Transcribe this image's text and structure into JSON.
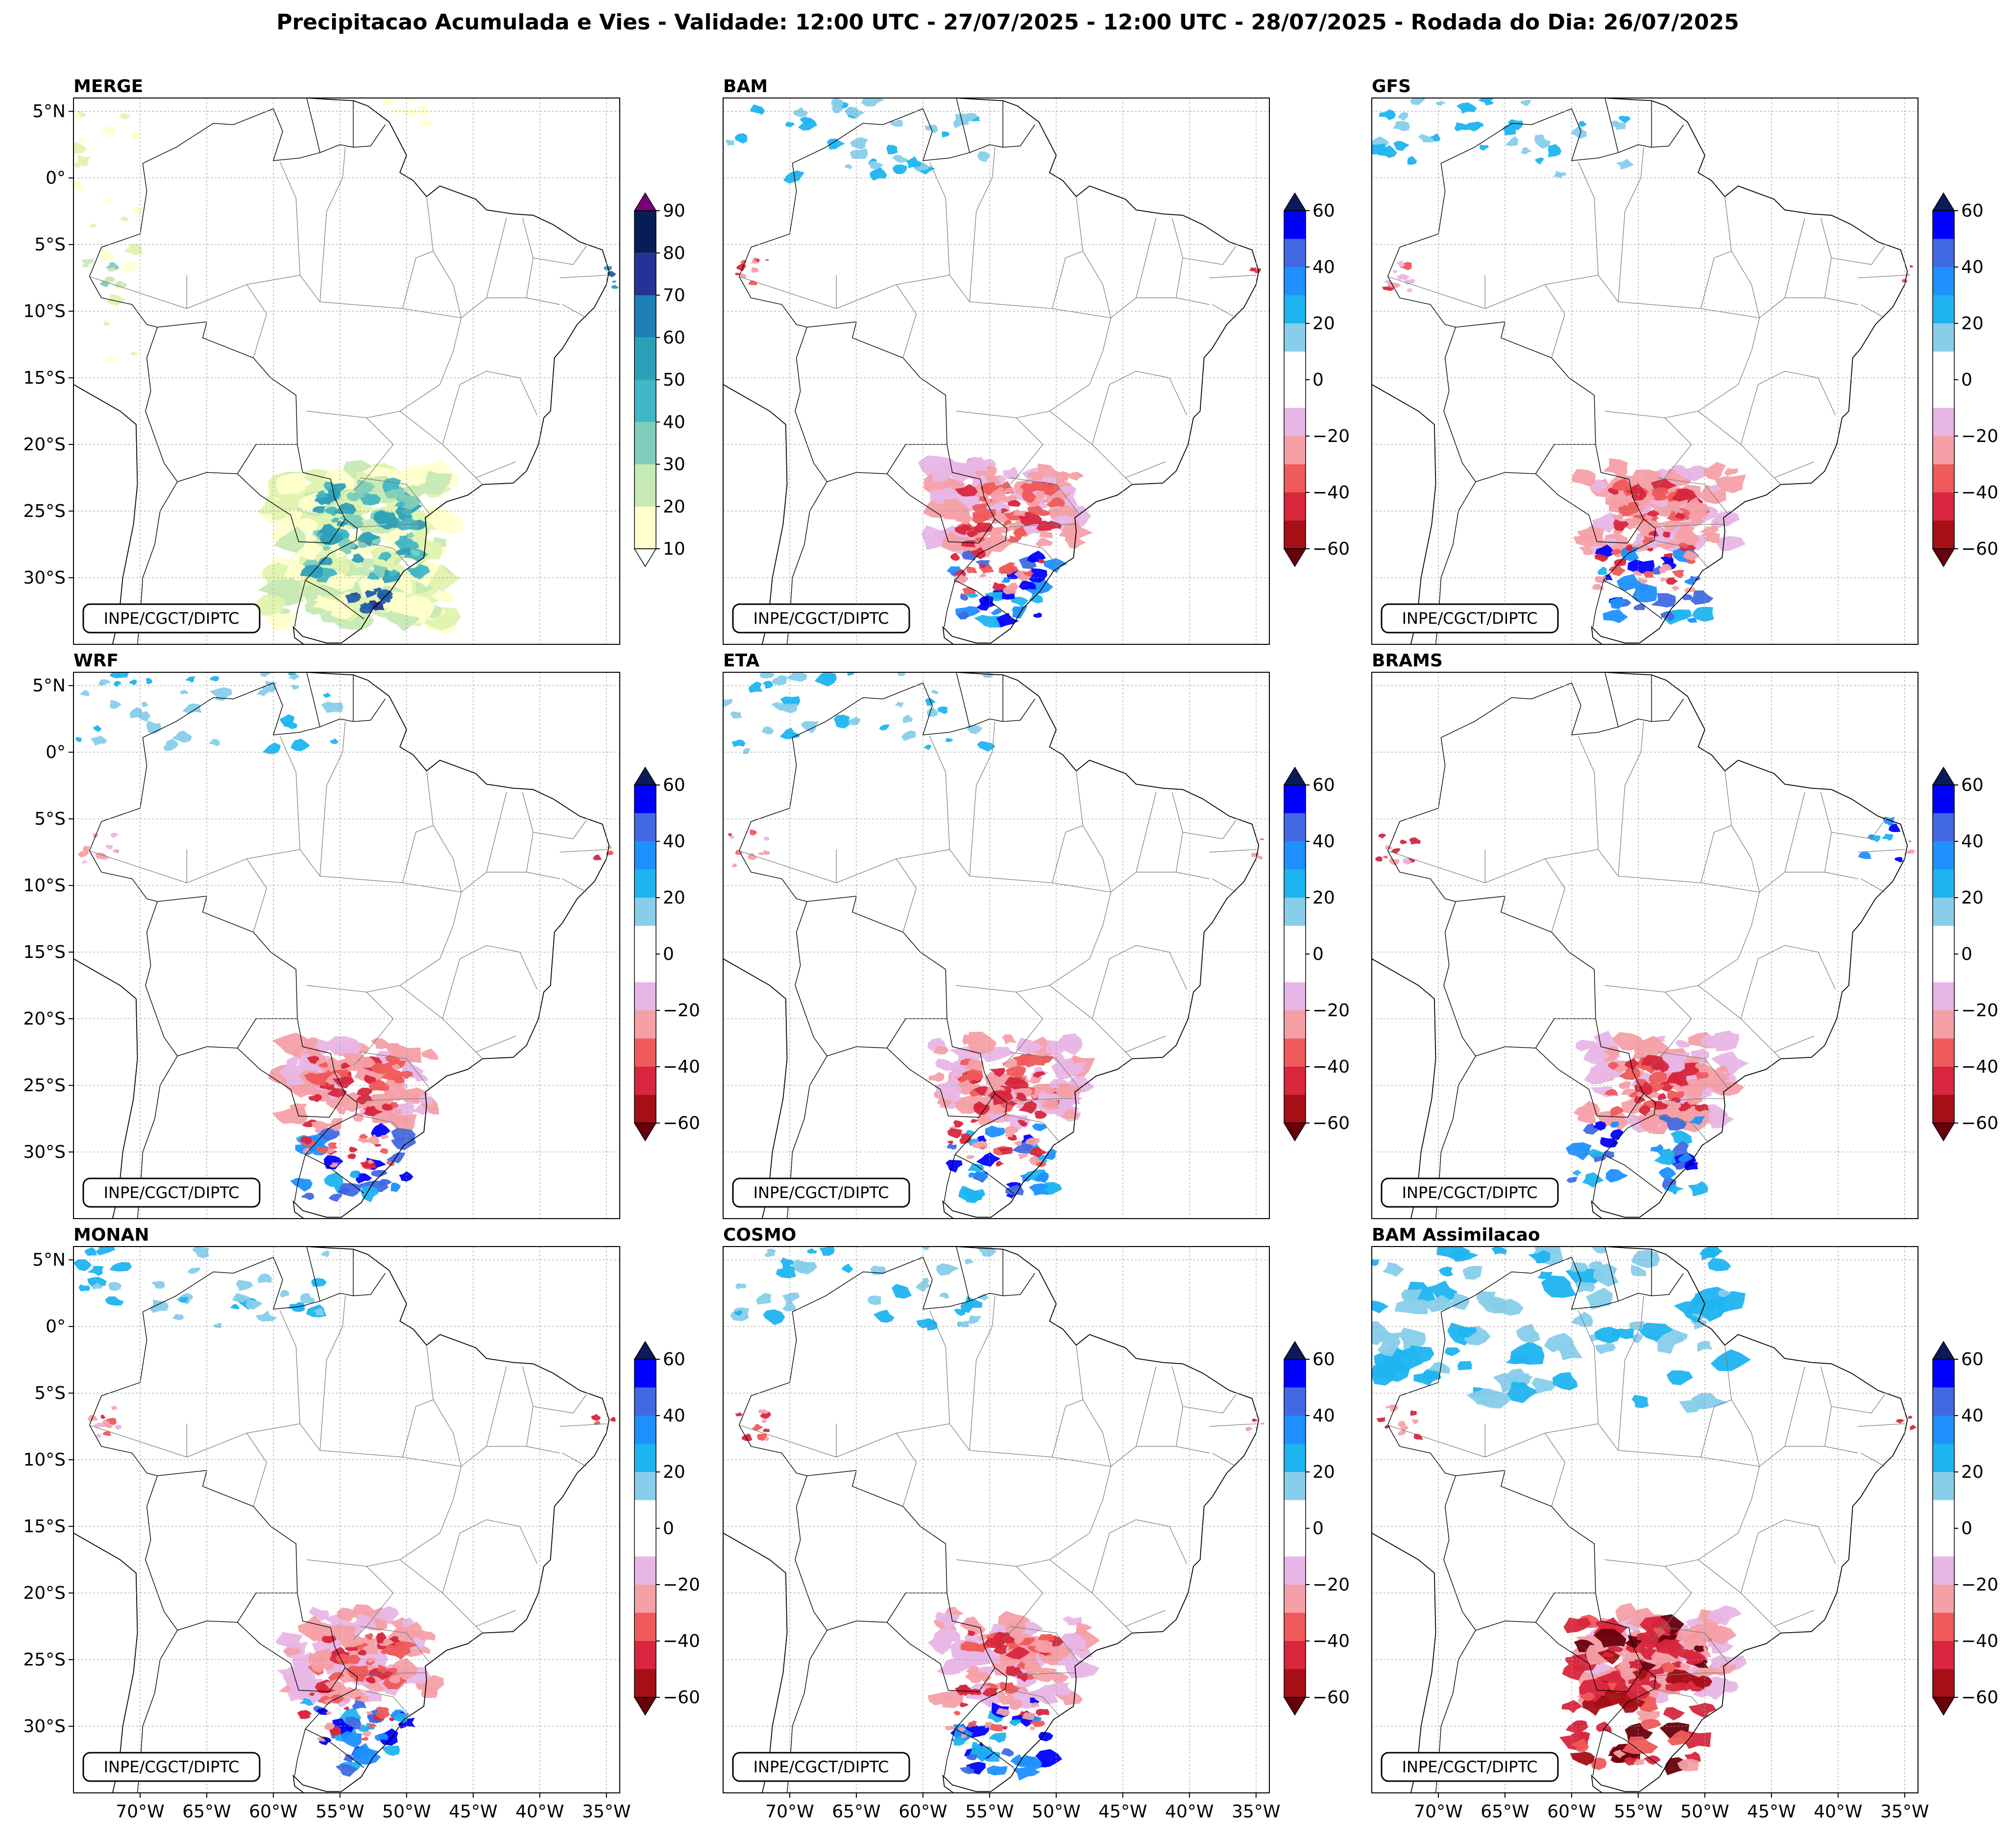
{
  "title": "Precipitacao Acumulada e Vies - Validade: 12:00 UTC - 27/07/2025 - 12:00 UTC - 28/07/2025 - Rodada do Dia: 26/07/2025",
  "credit": "INPE/CGCT/DIPTC",
  "lat_ticks": [
    "5°N",
    "0°",
    "5°S",
    "10°S",
    "15°S",
    "20°S",
    "25°S",
    "30°S"
  ],
  "lon_ticks": [
    "70°W",
    "65°W",
    "60°W",
    "55°W",
    "50°W",
    "45°W",
    "40°W",
    "35°W"
  ],
  "map_extent": {
    "lon_min": -75,
    "lon_max": -34,
    "lat_min": -35,
    "lat_max": 6
  },
  "colors": {
    "precip": [
      "#ffffcc",
      "#e0f3b0",
      "#c7e9b4",
      "#7fcdbb",
      "#41b6c4",
      "#2c9fb8",
      "#1d7fb4",
      "#225ea8",
      "#253494",
      "#081d58",
      "#7a0177"
    ],
    "bias_neg": [
      "#67000d",
      "#a50f15",
      "#d7263d",
      "#ef5a5a",
      "#f4a0a6",
      "#e8b6e6"
    ],
    "bias_pos": [
      "#87ceeb",
      "#1eb4f0",
      "#1e90ff",
      "#4169e1",
      "#0000ff",
      "#0b1a5a"
    ]
  },
  "panels": [
    {
      "name": "MERGE",
      "type": "precip",
      "colorbar": {
        "ticks": [
          "10",
          "20",
          "30",
          "40",
          "50",
          "60",
          "70",
          "80",
          "90"
        ]
      }
    },
    {
      "name": "BAM",
      "type": "bias",
      "colorbar": {
        "ticks": [
          "60",
          "40",
          "20",
          "0",
          "−20",
          "−40",
          "−60"
        ]
      }
    },
    {
      "name": "GFS",
      "type": "bias",
      "colorbar": {
        "ticks": [
          "60",
          "40",
          "20",
          "0",
          "−20",
          "−40",
          "−60"
        ]
      }
    },
    {
      "name": "WRF",
      "type": "bias",
      "colorbar": {
        "ticks": [
          "60",
          "40",
          "20",
          "0",
          "−20",
          "−40",
          "−60"
        ]
      }
    },
    {
      "name": "ETA",
      "type": "bias",
      "colorbar": {
        "ticks": [
          "60",
          "40",
          "20",
          "0",
          "−20",
          "−40",
          "−60"
        ]
      }
    },
    {
      "name": "BRAMS",
      "type": "bias",
      "colorbar": {
        "ticks": [
          "60",
          "40",
          "20",
          "0",
          "−20",
          "−40",
          "−60"
        ]
      }
    },
    {
      "name": "MONAN",
      "type": "bias",
      "colorbar": {
        "ticks": [
          "60",
          "40",
          "20",
          "0",
          "−20",
          "−40",
          "−60"
        ]
      }
    },
    {
      "name": "COSMO",
      "type": "bias",
      "colorbar": {
        "ticks": [
          "60",
          "40",
          "20",
          "0",
          "−20",
          "−40",
          "−60"
        ]
      }
    },
    {
      "name": "BAM Assimilacao",
      "type": "bias",
      "colorbar": {
        "ticks": [
          "60",
          "40",
          "20",
          "0",
          "−20",
          "−40",
          "−60"
        ]
      }
    }
  ]
}
